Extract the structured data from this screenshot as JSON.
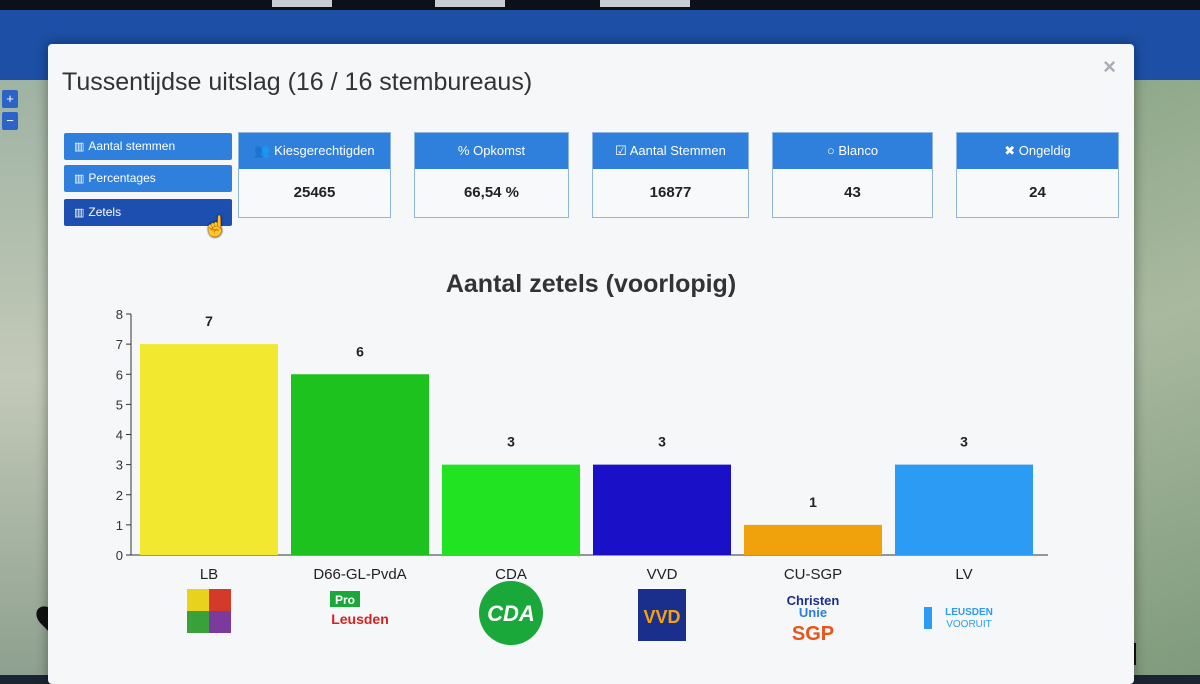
{
  "modal": {
    "title": "Tussentijdse uitslag (16 / 16 stembureaus)",
    "close_icon": "close-icon"
  },
  "view_buttons": [
    {
      "label": "Aantal stemmen",
      "icon": "bar-chart-icon",
      "active": false
    },
    {
      "label": "Percentages",
      "icon": "bar-chart-icon",
      "active": false
    },
    {
      "label": "Zetels",
      "icon": "bar-chart-icon",
      "active": true
    }
  ],
  "stats": [
    {
      "label": "Kiesgerechtigden",
      "icon": "users-icon",
      "value": "25465"
    },
    {
      "label": "Opkomst",
      "icon": "percent-icon",
      "value": "66,54 %"
    },
    {
      "label": "Aantal Stemmen",
      "icon": "checkbox-icon",
      "value": "16877"
    },
    {
      "label": "Blanco",
      "icon": "circle-icon",
      "value": "43"
    },
    {
      "label": "Ongeldig",
      "icon": "x-icon",
      "value": "24"
    }
  ],
  "map": {
    "counter": "16"
  },
  "chart_data": {
    "type": "bar",
    "title": "Aantal zetels (voorlopig)",
    "categories": [
      "LB",
      "D66-GL-PvdA",
      "CDA",
      "VVD",
      "CU-SGP",
      "LV"
    ],
    "values": [
      7,
      6,
      3,
      3,
      1,
      3
    ],
    "colors": [
      "#f2e830",
      "#1ec21e",
      "#22e322",
      "#1a10c8",
      "#f0a20c",
      "#2c9bf3"
    ],
    "ylim": [
      0,
      8
    ],
    "yticks": [
      0,
      1,
      2,
      3,
      4,
      5,
      6,
      7,
      8
    ],
    "logos": [
      {
        "text": ""
      },
      {
        "text": "Pro Leusden"
      },
      {
        "text": "CDA"
      },
      {
        "text": "VVD"
      },
      {
        "text": "Christen Unie SGP"
      },
      {
        "text": "LEUSDEN VOORUIT"
      }
    ]
  }
}
